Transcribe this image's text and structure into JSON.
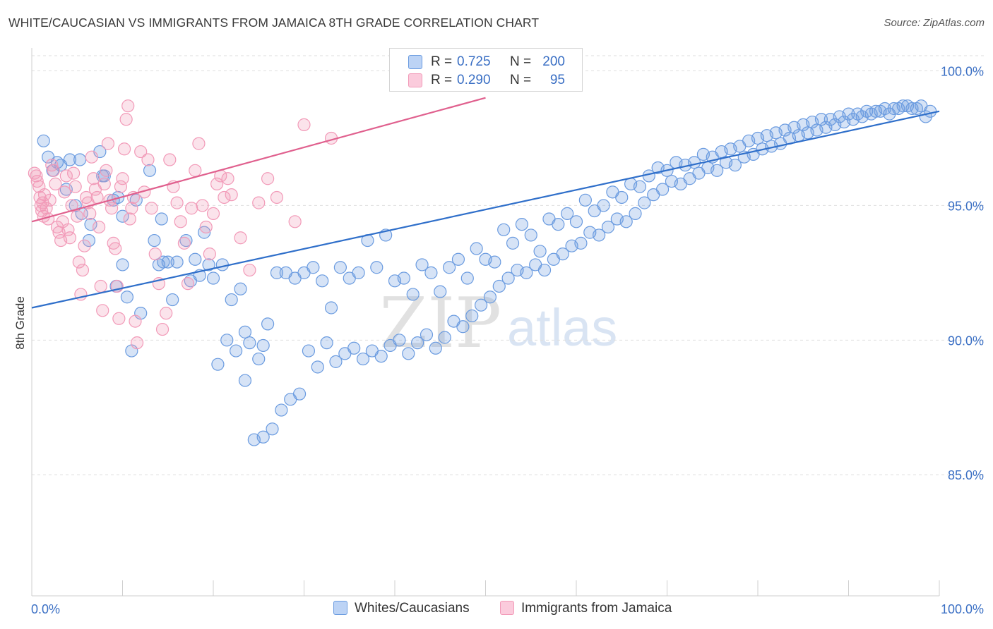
{
  "title": "WHITE/CAUCASIAN VS IMMIGRANTS FROM JAMAICA 8TH GRADE CORRELATION CHART",
  "source": "Source: ZipAtlas.com",
  "watermark": {
    "zip": "ZIP",
    "atlas": "atlas"
  },
  "legend": {
    "r_label": "R =",
    "n_label": "N =",
    "rows": [
      {
        "r": "0.725",
        "n": "200"
      },
      {
        "r": "0.290",
        "n": "95"
      }
    ]
  },
  "bottom_legend": [
    "Whites/Caucasians",
    "Immigrants from Jamaica"
  ],
  "chart_data": {
    "type": "scatter",
    "title": "WHITE/CAUCASIAN VS IMMIGRANTS FROM JAMAICA 8TH GRADE CORRELATION CHART",
    "xlabel": "",
    "ylabel": "8th Grade",
    "xlim": [
      0,
      100
    ],
    "ylim": [
      80.5,
      100.8
    ],
    "x_tick_labels": [
      "0.0%",
      "100.0%"
    ],
    "y_ticks": [
      100,
      95,
      90,
      85
    ],
    "y_tick_labels": [
      "100.0%",
      "95.0%",
      "90.0%",
      "85.0%"
    ],
    "grid": true,
    "legend_position": "top-center",
    "colors": {
      "whites": "#6a9be0",
      "jamaica": "#f29ab8",
      "whites_line": "#2f6fca",
      "jamaica_line": "#e0608e",
      "tick_label": "#3a6fc4"
    },
    "series": [
      {
        "name": "Whites/Caucasians",
        "r": 0.725,
        "n": 200,
        "trendline": [
          [
            0,
            91.2
          ],
          [
            100,
            98.5
          ]
        ],
        "points": [
          [
            1.3,
            97.4
          ],
          [
            1.8,
            96.8
          ],
          [
            2.3,
            96.3
          ],
          [
            2.8,
            96.6
          ],
          [
            3.2,
            96.5
          ],
          [
            4.2,
            96.7
          ],
          [
            5.3,
            96.7
          ],
          [
            7.8,
            96.1
          ],
          [
            3.8,
            95.6
          ],
          [
            4.8,
            95.0
          ],
          [
            5.5,
            94.7
          ],
          [
            6.5,
            94.3
          ],
          [
            7.5,
            97.0
          ],
          [
            8.0,
            96.1
          ],
          [
            9.0,
            95.2
          ],
          [
            9.5,
            95.3
          ],
          [
            10.0,
            94.6
          ],
          [
            11.5,
            95.2
          ],
          [
            13.0,
            96.3
          ],
          [
            14.3,
            94.5
          ],
          [
            6.3,
            93.7
          ],
          [
            9.3,
            92.0
          ],
          [
            10.0,
            92.8
          ],
          [
            10.5,
            91.6
          ],
          [
            11.0,
            89.6
          ],
          [
            12.0,
            91.0
          ],
          [
            13.5,
            93.7
          ],
          [
            14.0,
            92.8
          ],
          [
            14.5,
            92.9
          ],
          [
            15.0,
            92.9
          ],
          [
            15.5,
            91.5
          ],
          [
            16.0,
            92.9
          ],
          [
            17.0,
            93.7
          ],
          [
            17.5,
            92.2
          ],
          [
            18.0,
            93.0
          ],
          [
            18.5,
            92.4
          ],
          [
            19.0,
            94.0
          ],
          [
            19.5,
            92.8
          ],
          [
            20.0,
            92.3
          ],
          [
            21.0,
            92.8
          ],
          [
            22.0,
            91.5
          ],
          [
            23.0,
            91.9
          ],
          [
            23.5,
            90.3
          ],
          [
            24.0,
            89.9
          ],
          [
            25.0,
            89.3
          ],
          [
            25.5,
            89.8
          ],
          [
            26.0,
            90.6
          ],
          [
            27.0,
            92.5
          ],
          [
            28.0,
            92.5
          ],
          [
            29.0,
            92.3
          ],
          [
            30.0,
            92.5
          ],
          [
            31.0,
            92.7
          ],
          [
            32.0,
            92.2
          ],
          [
            33.0,
            91.2
          ],
          [
            34.0,
            92.7
          ],
          [
            35.0,
            92.3
          ],
          [
            36.0,
            92.5
          ],
          [
            37.0,
            93.7
          ],
          [
            38.0,
            92.7
          ],
          [
            39.0,
            93.9
          ],
          [
            40.0,
            92.2
          ],
          [
            41.0,
            92.3
          ],
          [
            42.0,
            91.7
          ],
          [
            43.0,
            92.8
          ],
          [
            44.0,
            92.5
          ],
          [
            45.0,
            91.8
          ],
          [
            46.0,
            92.7
          ],
          [
            47.0,
            93.0
          ],
          [
            48.0,
            92.3
          ],
          [
            49.0,
            93.4
          ],
          [
            50.0,
            93.0
          ],
          [
            51.0,
            92.9
          ],
          [
            52.0,
            94.1
          ],
          [
            53.0,
            93.6
          ],
          [
            54.0,
            94.3
          ],
          [
            55.0,
            93.9
          ],
          [
            56.0,
            93.3
          ],
          [
            57.0,
            94.5
          ],
          [
            58.0,
            94.3
          ],
          [
            59.0,
            94.7
          ],
          [
            60.0,
            94.4
          ],
          [
            61.0,
            95.2
          ],
          [
            62.0,
            94.8
          ],
          [
            63.0,
            95.0
          ],
          [
            64.0,
            95.5
          ],
          [
            65.0,
            95.3
          ],
          [
            66.0,
            95.8
          ],
          [
            67.0,
            95.7
          ],
          [
            68.0,
            96.1
          ],
          [
            69.0,
            96.4
          ],
          [
            70.0,
            96.3
          ],
          [
            71.0,
            96.6
          ],
          [
            72.0,
            96.5
          ],
          [
            73.0,
            96.6
          ],
          [
            74.0,
            96.9
          ],
          [
            75.0,
            96.8
          ],
          [
            76.0,
            97.0
          ],
          [
            77.0,
            97.1
          ],
          [
            78.0,
            97.2
          ],
          [
            79.0,
            97.4
          ],
          [
            80.0,
            97.5
          ],
          [
            81.0,
            97.6
          ],
          [
            82.0,
            97.7
          ],
          [
            83.0,
            97.8
          ],
          [
            84.0,
            97.9
          ],
          [
            85.0,
            98.0
          ],
          [
            86.0,
            98.1
          ],
          [
            87.0,
            98.2
          ],
          [
            88.0,
            98.2
          ],
          [
            89.0,
            98.3
          ],
          [
            90.0,
            98.4
          ],
          [
            91.0,
            98.4
          ],
          [
            92.0,
            98.5
          ],
          [
            93.0,
            98.5
          ],
          [
            94.0,
            98.6
          ],
          [
            95.0,
            98.6
          ],
          [
            96.0,
            98.7
          ],
          [
            97.0,
            98.6
          ],
          [
            98.0,
            98.7
          ],
          [
            99.0,
            98.5
          ],
          [
            98.5,
            98.3
          ],
          [
            97.5,
            98.6
          ],
          [
            96.5,
            98.7
          ],
          [
            95.5,
            98.6
          ],
          [
            94.5,
            98.4
          ],
          [
            93.5,
            98.5
          ],
          [
            92.5,
            98.4
          ],
          [
            91.5,
            98.3
          ],
          [
            90.5,
            98.2
          ],
          [
            89.5,
            98.1
          ],
          [
            88.5,
            98.0
          ],
          [
            87.5,
            97.9
          ],
          [
            86.5,
            97.8
          ],
          [
            85.5,
            97.7
          ],
          [
            84.5,
            97.6
          ],
          [
            83.5,
            97.5
          ],
          [
            82.5,
            97.3
          ],
          [
            81.5,
            97.2
          ],
          [
            80.5,
            97.1
          ],
          [
            79.5,
            96.9
          ],
          [
            78.5,
            96.8
          ],
          [
            77.5,
            96.5
          ],
          [
            76.5,
            96.6
          ],
          [
            75.5,
            96.3
          ],
          [
            74.5,
            96.4
          ],
          [
            73.5,
            96.2
          ],
          [
            72.5,
            96.0
          ],
          [
            71.5,
            95.8
          ],
          [
            70.5,
            95.9
          ],
          [
            69.5,
            95.6
          ],
          [
            68.5,
            95.4
          ],
          [
            67.5,
            95.1
          ],
          [
            66.5,
            94.7
          ],
          [
            65.5,
            94.4
          ],
          [
            64.5,
            94.5
          ],
          [
            63.5,
            94.2
          ],
          [
            62.5,
            93.9
          ],
          [
            61.5,
            94.0
          ],
          [
            60.5,
            93.6
          ],
          [
            59.5,
            93.5
          ],
          [
            58.5,
            93.2
          ],
          [
            57.5,
            93.0
          ],
          [
            56.5,
            92.6
          ],
          [
            55.5,
            92.8
          ],
          [
            54.5,
            92.5
          ],
          [
            53.5,
            92.6
          ],
          [
            52.5,
            92.3
          ],
          [
            51.5,
            92.0
          ],
          [
            50.5,
            91.6
          ],
          [
            49.5,
            91.3
          ],
          [
            48.5,
            90.9
          ],
          [
            47.5,
            90.5
          ],
          [
            46.5,
            90.7
          ],
          [
            45.5,
            90.1
          ],
          [
            44.5,
            89.7
          ],
          [
            43.5,
            90.2
          ],
          [
            42.5,
            89.9
          ],
          [
            41.5,
            89.5
          ],
          [
            40.5,
            90.0
          ],
          [
            39.5,
            89.8
          ],
          [
            38.5,
            89.4
          ],
          [
            37.5,
            89.6
          ],
          [
            36.5,
            89.3
          ],
          [
            35.5,
            89.7
          ],
          [
            34.5,
            89.5
          ],
          [
            33.5,
            89.2
          ],
          [
            32.5,
            89.9
          ],
          [
            31.5,
            89.0
          ],
          [
            30.5,
            89.6
          ],
          [
            29.5,
            88.0
          ],
          [
            28.5,
            87.8
          ],
          [
            27.5,
            87.4
          ],
          [
            26.5,
            86.7
          ],
          [
            25.5,
            86.4
          ],
          [
            24.5,
            86.3
          ],
          [
            23.5,
            88.5
          ],
          [
            22.5,
            89.6
          ],
          [
            21.5,
            90.0
          ],
          [
            20.5,
            89.1
          ]
        ]
      },
      {
        "name": "Immigrants from Jamaica",
        "r": 0.29,
        "n": 95,
        "trendline": [
          [
            0,
            94.4
          ],
          [
            50,
            99.0
          ]
        ],
        "points": [
          [
            0.3,
            96.2
          ],
          [
            0.5,
            96.1
          ],
          [
            0.6,
            95.9
          ],
          [
            0.8,
            95.7
          ],
          [
            0.9,
            95.3
          ],
          [
            1.0,
            95.0
          ],
          [
            1.1,
            94.8
          ],
          [
            1.2,
            95.1
          ],
          [
            1.3,
            94.6
          ],
          [
            1.4,
            95.4
          ],
          [
            1.6,
            94.9
          ],
          [
            1.8,
            94.5
          ],
          [
            2.0,
            95.2
          ],
          [
            2.2,
            96.5
          ],
          [
            2.4,
            96.3
          ],
          [
            2.6,
            95.8
          ],
          [
            2.8,
            94.2
          ],
          [
            3.0,
            94.0
          ],
          [
            3.2,
            93.7
          ],
          [
            3.4,
            94.4
          ],
          [
            3.6,
            95.5
          ],
          [
            3.8,
            96.1
          ],
          [
            4.0,
            94.1
          ],
          [
            4.2,
            93.8
          ],
          [
            4.4,
            95.0
          ],
          [
            4.6,
            96.2
          ],
          [
            4.8,
            95.7
          ],
          [
            5.0,
            94.6
          ],
          [
            5.2,
            92.9
          ],
          [
            5.4,
            91.7
          ],
          [
            5.6,
            92.6
          ],
          [
            5.8,
            93.5
          ],
          [
            6.0,
            95.3
          ],
          [
            6.2,
            95.1
          ],
          [
            6.4,
            94.7
          ],
          [
            6.6,
            96.8
          ],
          [
            6.8,
            96.0
          ],
          [
            7.0,
            95.6
          ],
          [
            7.2,
            95.3
          ],
          [
            7.4,
            94.2
          ],
          [
            7.6,
            92.0
          ],
          [
            7.8,
            91.1
          ],
          [
            8.0,
            95.8
          ],
          [
            8.2,
            96.3
          ],
          [
            8.4,
            97.3
          ],
          [
            8.6,
            95.2
          ],
          [
            8.8,
            94.9
          ],
          [
            9.0,
            93.6
          ],
          [
            9.2,
            93.4
          ],
          [
            9.4,
            92.0
          ],
          [
            9.6,
            90.8
          ],
          [
            9.8,
            95.7
          ],
          [
            10.0,
            96.0
          ],
          [
            10.2,
            97.1
          ],
          [
            10.4,
            98.2
          ],
          [
            10.6,
            98.7
          ],
          [
            10.8,
            94.5
          ],
          [
            11.0,
            94.9
          ],
          [
            11.2,
            95.3
          ],
          [
            11.4,
            90.7
          ],
          [
            11.6,
            89.9
          ],
          [
            12.0,
            97.0
          ],
          [
            12.4,
            95.5
          ],
          [
            12.8,
            96.7
          ],
          [
            13.2,
            94.9
          ],
          [
            13.6,
            93.2
          ],
          [
            14.0,
            92.1
          ],
          [
            14.4,
            90.4
          ],
          [
            14.8,
            91.0
          ],
          [
            15.2,
            96.7
          ],
          [
            15.6,
            95.7
          ],
          [
            16.0,
            95.1
          ],
          [
            16.4,
            94.4
          ],
          [
            16.8,
            93.6
          ],
          [
            17.2,
            92.1
          ],
          [
            17.6,
            94.9
          ],
          [
            18.0,
            96.3
          ],
          [
            18.4,
            97.3
          ],
          [
            18.8,
            95.0
          ],
          [
            19.2,
            94.2
          ],
          [
            19.6,
            93.2
          ],
          [
            20.0,
            94.7
          ],
          [
            20.4,
            95.8
          ],
          [
            20.8,
            96.1
          ],
          [
            21.2,
            95.3
          ],
          [
            21.6,
            96.0
          ],
          [
            22.0,
            95.4
          ],
          [
            23.0,
            93.8
          ],
          [
            24.0,
            92.6
          ],
          [
            25.0,
            95.1
          ],
          [
            26.0,
            96.0
          ],
          [
            27.0,
            95.3
          ],
          [
            29.0,
            94.4
          ],
          [
            30.0,
            98.0
          ],
          [
            33.0,
            97.5
          ]
        ]
      }
    ]
  }
}
